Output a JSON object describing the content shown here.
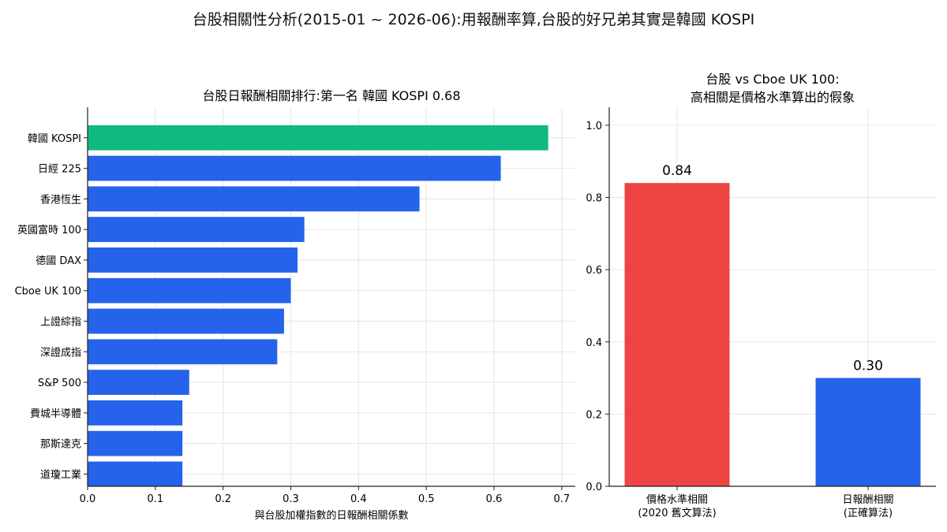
{
  "suptitle": "台股相關性分析(2015-01 ~ 2026-06):用報酬率算,台股的好兄弟其實是韓國 KOSPI",
  "colors": {
    "highlight": "#10b981",
    "bar": "#2563eb",
    "red": "#ef4444",
    "blue": "#2563eb"
  },
  "chart_data": [
    {
      "type": "bar",
      "orientation": "horizontal",
      "title": "台股日報酬相關排行:第一名 韓國 KOSPI 0.68",
      "xlabel": "與台股加權指數的日報酬相關係數",
      "ylabel": "",
      "xlim": [
        0,
        0.72
      ],
      "xticks": [
        "0.0",
        "0.1",
        "0.2",
        "0.3",
        "0.4",
        "0.5",
        "0.6",
        "0.7"
      ],
      "grid": true,
      "categories": [
        "韓國 KOSPI",
        "日經 225",
        "香港恆生",
        "英國富時 100",
        "德國 DAX",
        "Cboe UK 100",
        "上證綜指",
        "深證成指",
        "S&P 500",
        "費城半導體",
        "那斯達克",
        "道瓊工業"
      ],
      "values": [
        0.68,
        0.61,
        0.49,
        0.32,
        0.31,
        0.3,
        0.29,
        0.28,
        0.15,
        0.14,
        0.14,
        0.14
      ],
      "highlight_index": 0
    },
    {
      "type": "bar",
      "title": "台股 vs Cboe UK 100:",
      "subtitle": "高相關是價格水準算出的假象",
      "xlabel": "",
      "ylabel": "",
      "ylim": [
        0,
        1.05
      ],
      "yticks": [
        "0.0",
        "0.2",
        "0.4",
        "0.6",
        "0.8",
        "1.0"
      ],
      "grid": true,
      "categories": [
        {
          "line1": "價格水準相關",
          "line2": "(2020 舊文算法)"
        },
        {
          "line1": "日報酬相關",
          "line2": "(正確算法)"
        }
      ],
      "values": [
        0.84,
        0.3
      ],
      "data_labels": [
        "0.84",
        "0.30"
      ]
    }
  ]
}
